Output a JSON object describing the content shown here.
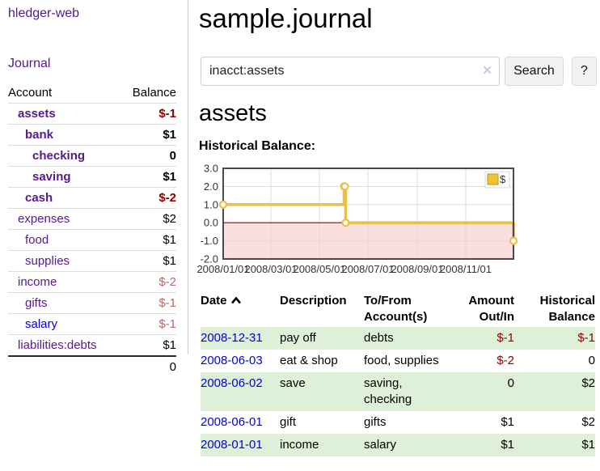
{
  "brand": "hledger-web",
  "nav": {
    "journal": "Journal"
  },
  "header": {
    "title": "sample.journal"
  },
  "search": {
    "value": "inacct:assets",
    "clear_glyph": "✕",
    "button_label": "Search",
    "help_label": "?"
  },
  "account_view": {
    "heading": "assets",
    "chart_title": "Historical Balance:"
  },
  "sidebar": {
    "columns": {
      "account": "Account",
      "balance": "Balance"
    },
    "rows": [
      {
        "name": "assets",
        "balance": "$-1",
        "level": 1,
        "bold": true,
        "balance_style": "neg-strong",
        "link_style": "purple"
      },
      {
        "name": "bank",
        "balance": "$1",
        "level": 2,
        "bold": true,
        "balance_style": "pos",
        "link_style": "purple"
      },
      {
        "name": "checking",
        "balance": "0",
        "level": 3,
        "bold": true,
        "balance_style": "pos",
        "link_style": "purple"
      },
      {
        "name": "saving",
        "balance": "$1",
        "level": 3,
        "bold": true,
        "balance_style": "pos",
        "link_style": "purple"
      },
      {
        "name": "cash",
        "balance": "$-2",
        "level": 2,
        "bold": true,
        "balance_style": "neg-strong",
        "link_style": "purple"
      },
      {
        "name": "expenses",
        "balance": "$2",
        "level": 1,
        "bold": false,
        "balance_style": "pos",
        "link_style": "purple"
      },
      {
        "name": "food",
        "balance": "$1",
        "level": 2,
        "bold": false,
        "balance_style": "pos",
        "link_style": "purple"
      },
      {
        "name": "supplies",
        "balance": "$1",
        "level": 2,
        "bold": false,
        "balance_style": "pos",
        "link_style": "purple"
      },
      {
        "name": "income",
        "balance": "$-2",
        "level": 1,
        "bold": false,
        "balance_style": "neg-soft",
        "link_style": "purple"
      },
      {
        "name": "gifts",
        "balance": "$-1",
        "level": 2,
        "bold": false,
        "balance_style": "neg-soft",
        "link_style": "purple"
      },
      {
        "name": "salary",
        "balance": "$-1",
        "level": 2,
        "bold": false,
        "balance_style": "neg-soft",
        "link_style": "blue"
      },
      {
        "name": "liabilities:debts",
        "balance": "$1",
        "level": 1,
        "bold": false,
        "balance_style": "pos",
        "link_style": "purple"
      }
    ],
    "total": "0"
  },
  "chart_data": {
    "type": "line",
    "step": true,
    "title": "Historical Balance",
    "series": [
      {
        "name": "$",
        "color": "#e8c04b",
        "points": [
          [
            "2008-01-01",
            1
          ],
          [
            "2008-06-01",
            2
          ],
          [
            "2008-06-02",
            2
          ],
          [
            "2008-06-03",
            0
          ],
          [
            "2008-12-31",
            -1
          ]
        ]
      }
    ],
    "x_range": [
      "2008-01-01",
      "2008-12-31"
    ],
    "ylim": [
      -2,
      3
    ],
    "yticks": [
      3,
      2,
      1,
      0,
      -1,
      -2
    ],
    "ytick_labels": [
      "3.0",
      "2.0",
      "1.0",
      "0.0",
      "-1.0",
      "-2.0"
    ],
    "xtick_dates": [
      "2008-01-01",
      "2008-03-01",
      "2008-05-01",
      "2008-07-01",
      "2008-09-01",
      "2008-11-01"
    ],
    "xtick_labels": [
      "2008/01/01",
      "2008/03/01",
      "2008/05/01",
      "2008/07/01",
      "2008/09/01",
      "2008/11/01"
    ],
    "grid": true,
    "legend_position": "top-right",
    "legend": {
      "label": "$",
      "swatch_color": "#efc431"
    },
    "negative_fill": "#fbdede",
    "zero_line_color": "#9d0000",
    "border_color": "#4a4a4a",
    "grid_color": "#dcdcdc"
  },
  "register": {
    "columns": {
      "date": "Date",
      "description": "Description",
      "accounts": "To/From\nAccount(s)",
      "amount": "Amount\nOut/In",
      "balance": "Historical\nBalance"
    },
    "sort_order": "ascending",
    "rows": [
      {
        "date": "2008-12-31",
        "description": "pay off",
        "accounts": "debts",
        "amount": "$-1",
        "amount_negative": true,
        "balance": "$-1",
        "balance_negative": true,
        "shade": "green"
      },
      {
        "date": "2008-06-03",
        "description": "eat & shop",
        "accounts": "food, supplies",
        "amount": "$-2",
        "amount_negative": true,
        "balance": "0",
        "balance_negative": false,
        "shade": "white"
      },
      {
        "date": "2008-06-02",
        "description": "save",
        "accounts": "saving,\nchecking",
        "amount": "0",
        "amount_negative": false,
        "balance": "$2",
        "balance_negative": false,
        "shade": "green"
      },
      {
        "date": "2008-06-01",
        "description": "gift",
        "accounts": "gifts",
        "amount": "$1",
        "amount_negative": false,
        "balance": "$2",
        "balance_negative": false,
        "shade": "white"
      },
      {
        "date": "2008-01-01",
        "description": "income",
        "accounts": "salary",
        "amount": "$1",
        "amount_negative": false,
        "balance": "$1",
        "balance_negative": false,
        "shade": "green"
      }
    ]
  },
  "colors": {
    "link_purple": "#551a8b",
    "link_blue": "#0000e0",
    "negative_strong": "#8b0000",
    "negative_soft": "#b56a6a",
    "row_green": "#dff0d8",
    "chart_line": "#e8c04b",
    "chart_negative_area": "#fbdede",
    "chart_zero_line": "#9d0000"
  }
}
